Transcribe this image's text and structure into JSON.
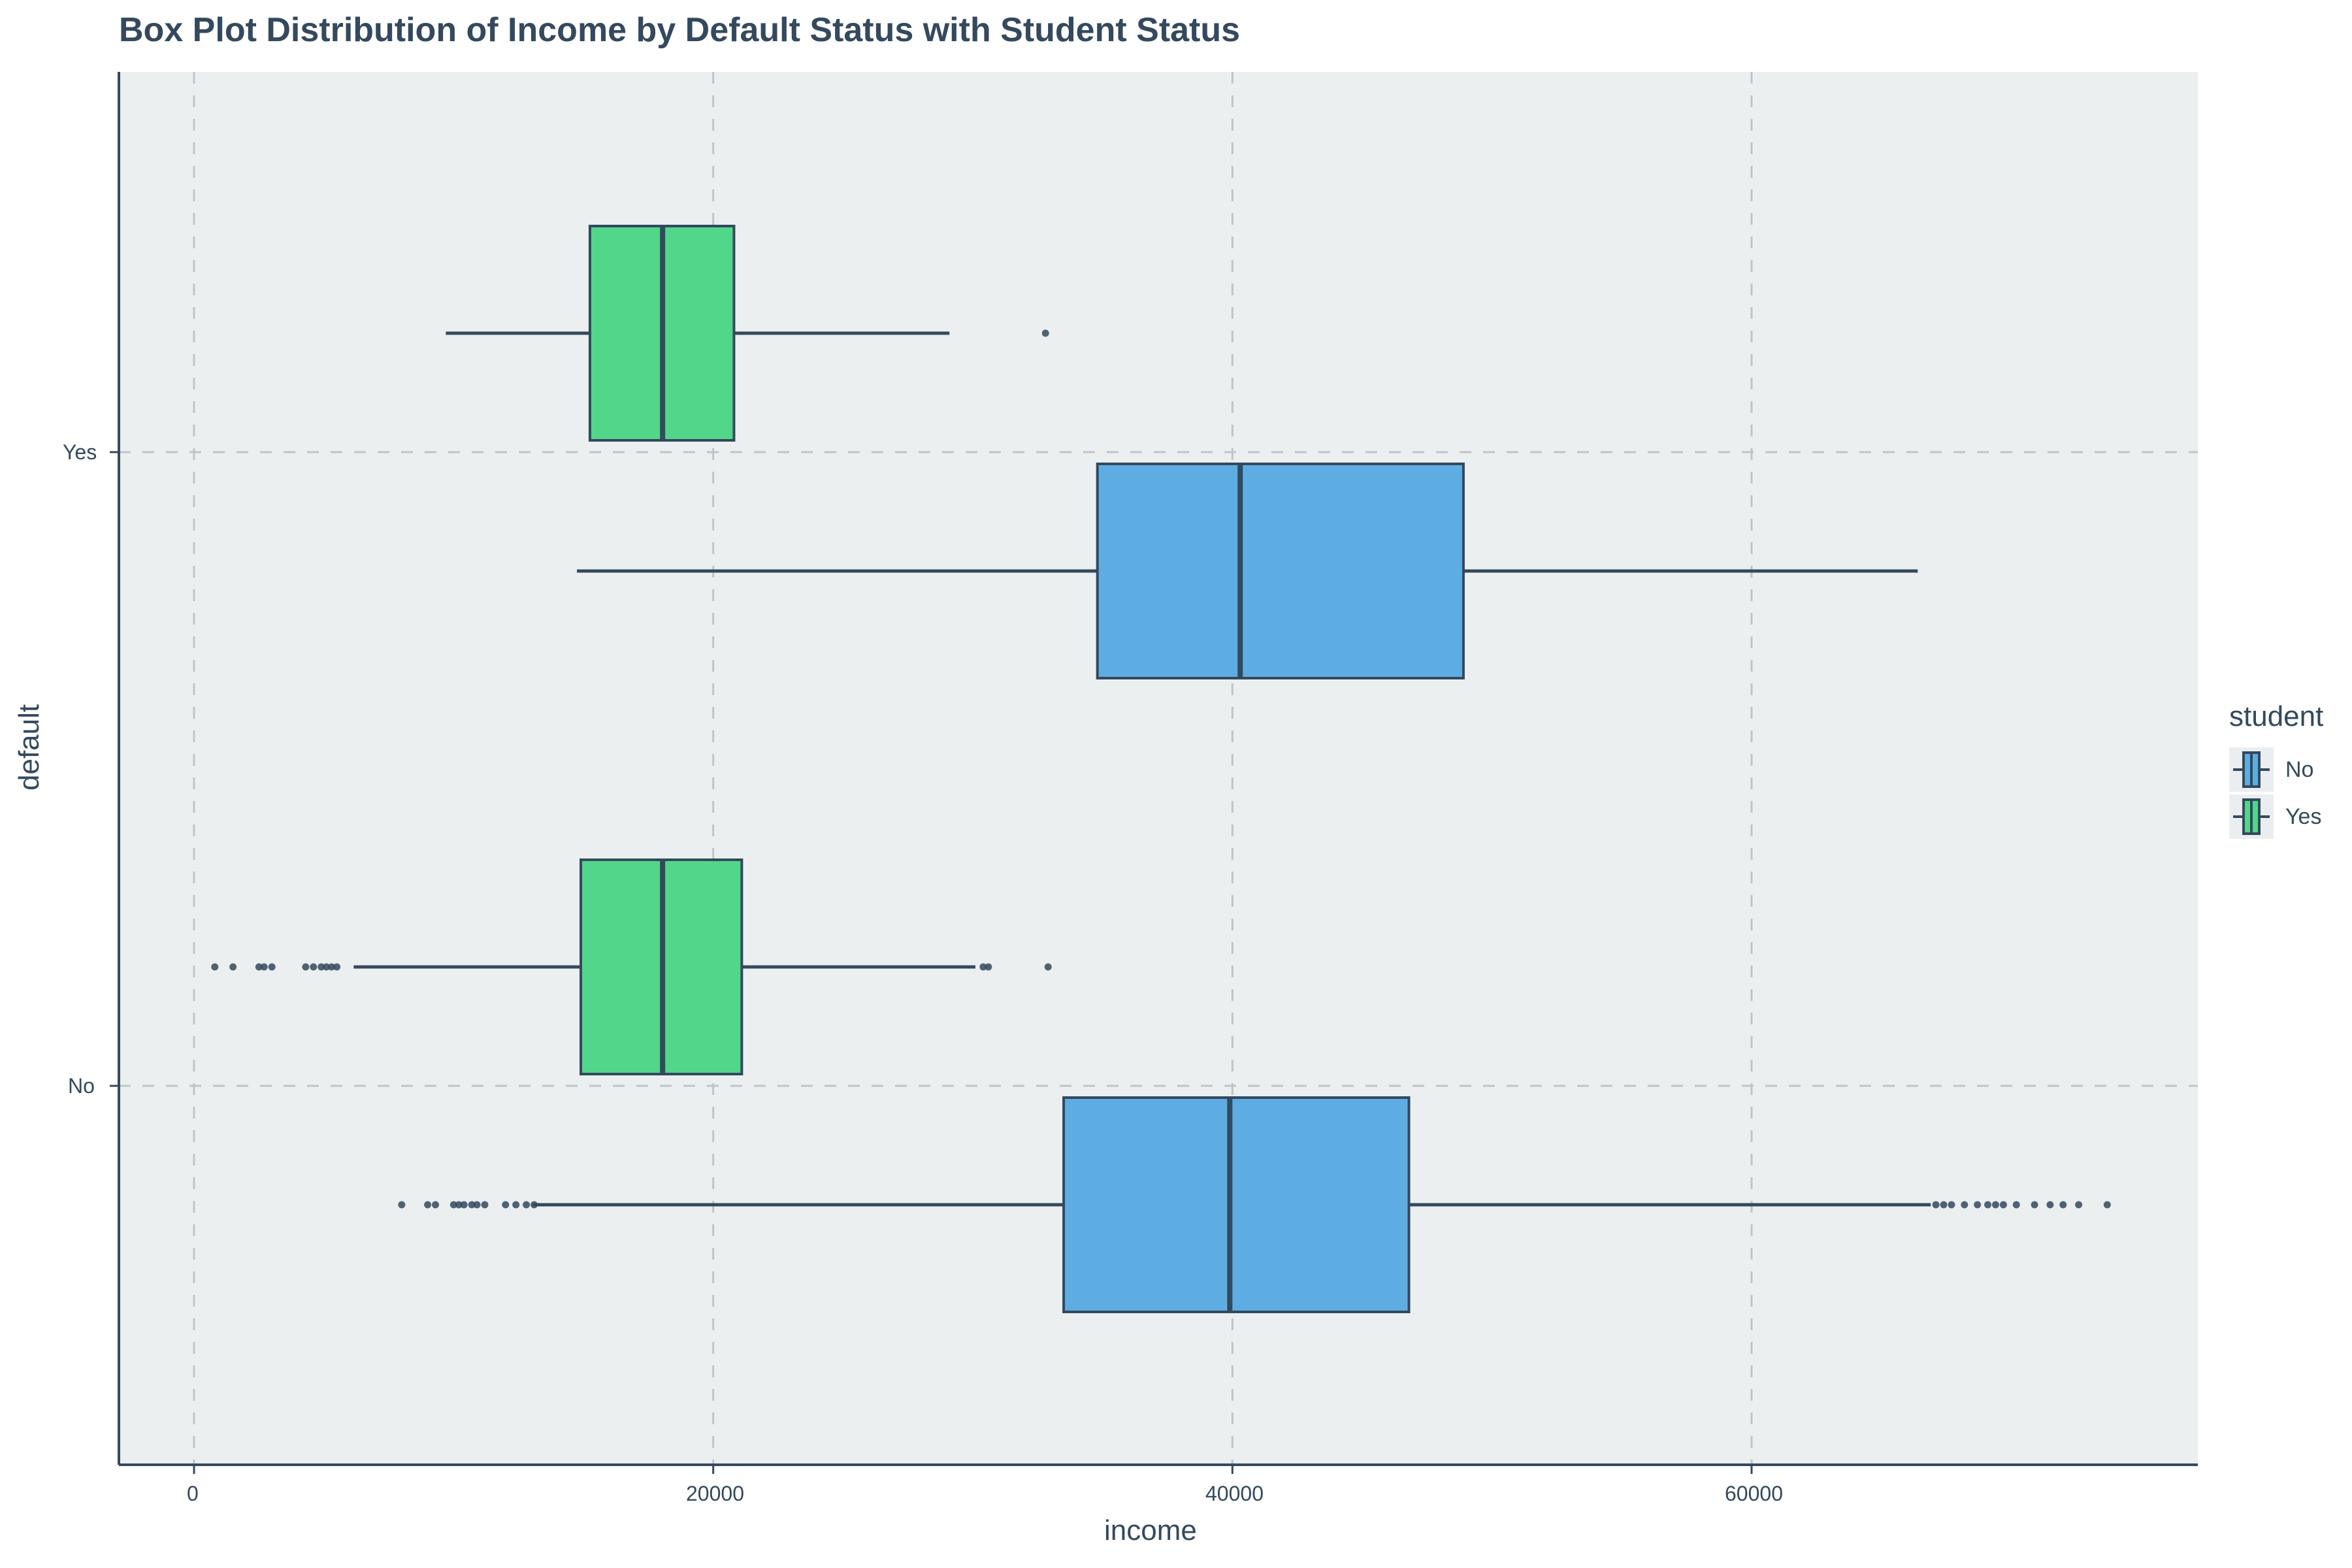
{
  "header": {
    "title": "Box Plot Distribution of Income by Default Status with Student Status"
  },
  "axes": {
    "x_label": "income",
    "y_label": "default",
    "x_ticks": [
      "0",
      "20000",
      "40000",
      "60000"
    ],
    "y_ticks": [
      "No",
      "Yes"
    ]
  },
  "legend": {
    "title": "student",
    "items": [
      {
        "label": "No",
        "color": "#5DADE2"
      },
      {
        "label": "Yes",
        "color": "#52D689"
      }
    ]
  },
  "colors": {
    "panel_bg": "#EBEFF0",
    "outline": "#34495E",
    "grid": "#BFC4C9"
  },
  "chart_data": {
    "type": "box",
    "orientation": "horizontal",
    "title": "Box Plot Distribution of Income by Default Status with Student Status",
    "xlabel": "income",
    "ylabel": "default",
    "xlim": [
      -2900,
      77200
    ],
    "x_ticks": [
      0,
      20000,
      40000,
      60000
    ],
    "categories": [
      "No",
      "Yes"
    ],
    "legend_title": "student",
    "legend_position": "right",
    "grid": true,
    "series": [
      {
        "name": "No",
        "color": "#5DADE2",
        "boxes": [
          {
            "default": "No",
            "whisker_low": 13050,
            "q1": 33500,
            "median": 39900,
            "q3": 46800,
            "whisker_high": 66900,
            "outliers": [
              8000,
              9000,
              9300,
              10000,
              10200,
              10400,
              10700,
              10900,
              11200,
              12000,
              12400,
              12800,
              13100,
              67100,
              67400,
              67700,
              68200,
              68700,
              69100,
              69400,
              69700,
              70200,
              70900,
              71500,
              72000,
              72600,
              73700
            ]
          },
          {
            "default": "Yes",
            "whisker_low": 14750,
            "q1": 34800,
            "median": 40300,
            "q3": 48900,
            "whisker_high": 66400,
            "outliers": []
          }
        ]
      },
      {
        "name": "Yes",
        "color": "#52D689",
        "boxes": [
          {
            "default": "No",
            "whisker_low": 6150,
            "q1": 14900,
            "median": 18050,
            "q3": 21100,
            "whisker_high": 30100,
            "outliers": [
              800,
              1500,
              2500,
              2700,
              3000,
              4300,
              4600,
              4900,
              5100,
              5300,
              5500,
              30400,
              30600,
              32900
            ]
          },
          {
            "default": "Yes",
            "whisker_low": 9700,
            "q1": 15250,
            "median": 18050,
            "q3": 20800,
            "whisker_high": 29100,
            "outliers": [
              32800
            ]
          }
        ]
      }
    ]
  }
}
